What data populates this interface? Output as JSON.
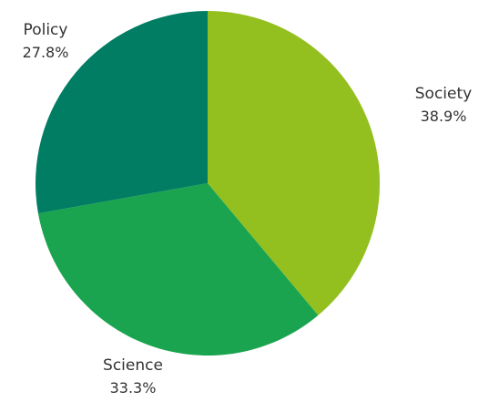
{
  "chart_data": {
    "type": "pie",
    "title": "",
    "slices": [
      {
        "label": "Society",
        "value": 38.9,
        "display": "38.9%",
        "color": "#93c01f"
      },
      {
        "label": "Science",
        "value": 33.3,
        "display": "33.3%",
        "color": "#1aa44f"
      },
      {
        "label": "Policy",
        "value": 27.8,
        "display": "27.8%",
        "color": "#007d62"
      }
    ],
    "start_angle_deg": 0,
    "direction": "clockwise",
    "legend": "none"
  }
}
